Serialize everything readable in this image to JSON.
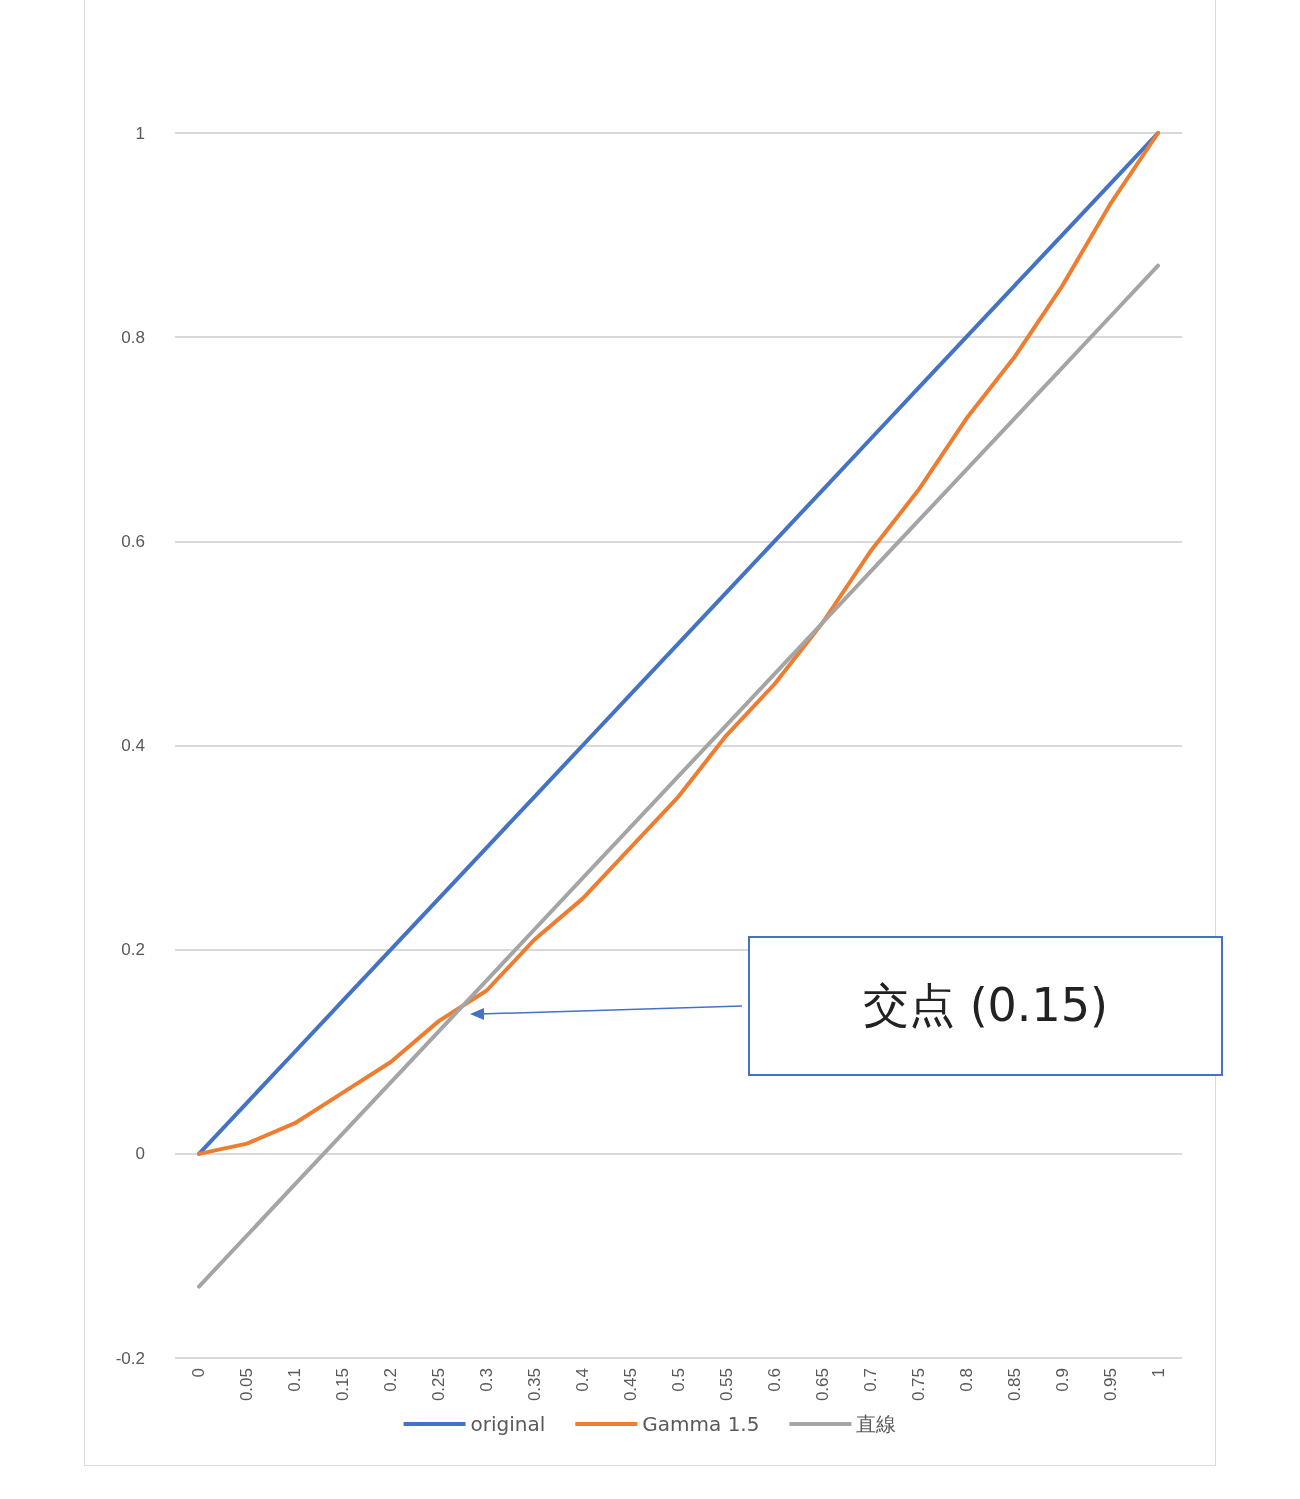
{
  "chart_data": {
    "type": "line",
    "categories": [
      "0",
      "0.05",
      "0.1",
      "0.15",
      "0.2",
      "0.25",
      "0.3",
      "0.35",
      "0.4",
      "0.45",
      "0.5",
      "0.55",
      "0.6",
      "0.65",
      "0.7",
      "0.75",
      "0.8",
      "0.85",
      "0.9",
      "0.95",
      "1"
    ],
    "series": [
      {
        "name": "original",
        "color": "#4472c4",
        "values": [
          0,
          0.05,
          0.1,
          0.15,
          0.2,
          0.25,
          0.3,
          0.35,
          0.4,
          0.45,
          0.5,
          0.55,
          0.6,
          0.65,
          0.7,
          0.75,
          0.8,
          0.85,
          0.9,
          0.95,
          1
        ]
      },
      {
        "name": "Gamma 1.5",
        "color": "#ed7d31",
        "values": [
          0,
          0.01,
          0.03,
          0.06,
          0.09,
          0.13,
          0.16,
          0.21,
          0.25,
          0.3,
          0.35,
          0.41,
          0.46,
          0.52,
          0.59,
          0.65,
          0.72,
          0.78,
          0.85,
          0.93,
          1
        ]
      },
      {
        "name": "直線",
        "color": "#a5a5a5",
        "values": [
          -0.13,
          -0.08,
          -0.03,
          0.02,
          0.07,
          0.12,
          0.17,
          0.22,
          0.27,
          0.32,
          0.37,
          0.42,
          0.47,
          0.52,
          0.57,
          0.62,
          0.67,
          0.72,
          0.77,
          0.82,
          0.87
        ]
      }
    ],
    "ylim": [
      -0.2,
      1
    ],
    "yticks": [
      -0.2,
      0,
      0.2,
      0.4,
      0.6,
      0.8,
      1
    ],
    "grid": "y",
    "legend": "bottom",
    "marker": "none",
    "line_style": "solid",
    "annotations": [
      "交点 (0.15)"
    ]
  }
}
